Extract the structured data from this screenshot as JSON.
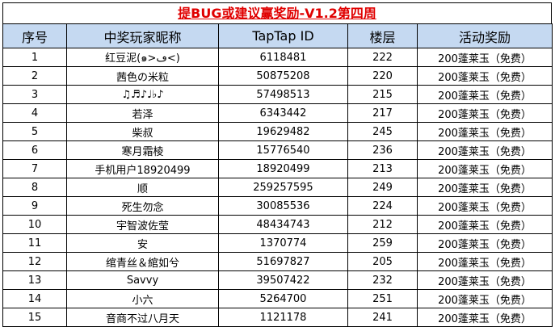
{
  "title": "提BUG或建议赢奖励-V1.2第四周",
  "headers": [
    "序号",
    "中奖玩家昵称",
    "TapTap ID",
    "楼层",
    "活动奖励"
  ],
  "rows": [
    [
      "1",
      "红豆泥(๑>ڡ<)",
      "6118481",
      "222",
      "200蓬莱玉（免费）"
    ],
    [
      "2",
      "茜色の米粒",
      "50875208",
      "220",
      "200蓬莱玉（免费）"
    ],
    [
      "3",
      "♫♬♪♩♭♪",
      "57498513",
      "215",
      "200蓬莱玉（免费）"
    ],
    [
      "4",
      "若泽",
      "6343442",
      "217",
      "200蓬莱玉（免费）"
    ],
    [
      "5",
      "柴叔",
      "19629482",
      "245",
      "200蓬莱玉（免费）"
    ],
    [
      "6",
      "寒月霜棱",
      "15776540",
      "236",
      "200蓬莱玉（免费）"
    ],
    [
      "7",
      "手机用户18920499",
      "18920499",
      "213",
      "200蓬莱玉（免费）"
    ],
    [
      "8",
      "顺",
      "259257595",
      "249",
      "200蓬莱玉（免费）"
    ],
    [
      "9",
      "死生勿念",
      "30085536",
      "224",
      "200蓬莱玉（免费）"
    ],
    [
      "10",
      "宇智波佐莹",
      "48434743",
      "212",
      "200蓬莱玉（免费）"
    ],
    [
      "11",
      "安",
      "1370774",
      "259",
      "200蓬莱玉（免费）"
    ],
    [
      "12",
      "绾青丝＆綰如兮",
      "51697827",
      "205",
      "200蓬莱玉（免费）"
    ],
    [
      "13",
      "Savvy",
      "39507422",
      "232",
      "200蓬莱玉（免费）"
    ],
    [
      "14",
      "小六",
      "5264700",
      "251",
      "200蓬莱玉（免费）"
    ],
    [
      "15",
      "音商不过八月天",
      "1121178",
      "241",
      "200蓬莱玉（免费）"
    ]
  ]
}
